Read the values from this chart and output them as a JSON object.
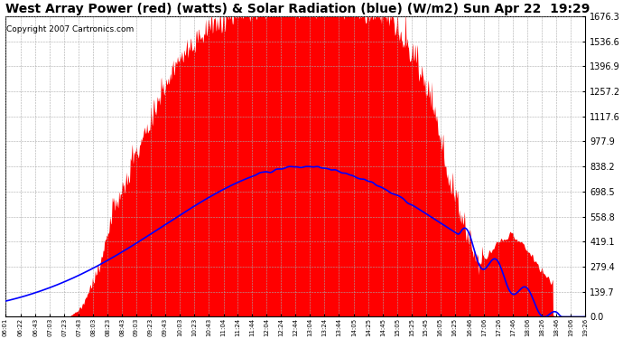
{
  "title": "West Array Power (red) (watts) & Solar Radiation (blue) (W/m2) Sun Apr 22  19:29",
  "copyright": "Copyright 2007 Cartronics.com",
  "ymax": 1676.3,
  "yticks": [
    0.0,
    139.7,
    279.4,
    419.1,
    558.8,
    698.5,
    838.2,
    977.9,
    1117.6,
    1257.2,
    1396.9,
    1536.6,
    1676.3
  ],
  "fill_color": "red",
  "line_color": "blue",
  "background_color": "#ffffff",
  "grid_color": "#aaaaaa",
  "title_fontsize": 10,
  "copyright_fontsize": 6.5,
  "xtick_labels": [
    "06:01",
    "06:22",
    "06:43",
    "07:03",
    "07:23",
    "07:43",
    "08:03",
    "08:23",
    "08:43",
    "09:03",
    "09:23",
    "09:43",
    "10:03",
    "10:23",
    "10:43",
    "11:04",
    "11:24",
    "11:44",
    "12:04",
    "12:24",
    "12:44",
    "13:04",
    "13:24",
    "13:44",
    "14:05",
    "14:25",
    "14:45",
    "15:05",
    "15:25",
    "15:45",
    "16:05",
    "16:25",
    "16:46",
    "17:06",
    "17:26",
    "17:46",
    "18:06",
    "18:26",
    "18:46",
    "19:06",
    "19:26"
  ]
}
